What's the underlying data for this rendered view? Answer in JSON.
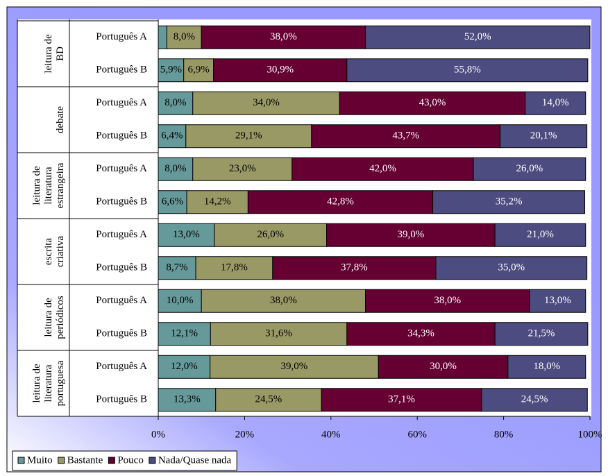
{
  "chart_data": {
    "type": "stacked_bar_horizontal",
    "groups": [
      {
        "label": [
          "leitura de",
          "BD"
        ]
      },
      {
        "label": [
          "debate"
        ]
      },
      {
        "label": [
          "leitura de",
          "literatura",
          "estrangeira"
        ]
      },
      {
        "label": [
          "escrita",
          "criativa"
        ]
      },
      {
        "label": [
          "leitura de",
          "periódicos"
        ]
      },
      {
        "label": [
          "leitura de",
          "literatura",
          "portuguesa"
        ]
      }
    ],
    "categories": [
      "Português A",
      "Português B",
      "Português A",
      "Português B",
      "Português A",
      "Português B",
      "Português A",
      "Português B",
      "Português A",
      "Português B",
      "Português A",
      "Português B"
    ],
    "series": [
      {
        "name": "Muito",
        "color": "#669999",
        "values": [
          2,
          5.9,
          8,
          6.4,
          8,
          6.6,
          13,
          8.7,
          10,
          12.1,
          12,
          13.3
        ],
        "value_labels": [
          null,
          "5,9%",
          "8,0%",
          "6,4%",
          "8,0%",
          "6,6%",
          "13,0%",
          "8,7%",
          "10,0%",
          "12,1%",
          "12,0%",
          "13,3%"
        ]
      },
      {
        "name": "Bastante",
        "color": "#999966",
        "values": [
          8,
          6.9,
          34,
          29.1,
          23,
          14.2,
          26,
          17.8,
          38,
          31.6,
          39,
          24.5
        ],
        "value_labels": [
          "8,0%",
          "6,9%",
          "34,0%",
          "29,1%",
          "23,0%",
          "14,2%",
          "26,0%",
          "17,8%",
          "38,0%",
          "31,6%",
          "39,0%",
          "24,5%"
        ]
      },
      {
        "name": "Pouco",
        "color": "#660033",
        "values": [
          38,
          30.9,
          43,
          43.7,
          42,
          42.8,
          39,
          37.8,
          38,
          34.3,
          30,
          37.1
        ],
        "value_labels": [
          "38,0%",
          "30,9%",
          "43,0%",
          "43,7%",
          "42,0%",
          "42,8%",
          "39,0%",
          "37,8%",
          "38,0%",
          "34,3%",
          "30,0%",
          "37,1%"
        ]
      },
      {
        "name": "Nada/Quase nada",
        "color": "#4c4c80",
        "values": [
          52,
          55.8,
          14,
          20.1,
          26,
          35.2,
          21,
          35,
          13,
          21.5,
          18,
          24.5
        ],
        "value_labels": [
          "52,0%",
          "55,8%",
          "14,0%",
          "20,1%",
          "26,0%",
          "35,2%",
          "21,0%",
          "35,0%",
          "13,0%",
          "21,5%",
          "18,0%",
          "24,5%"
        ]
      }
    ],
    "xlim": [
      0,
      100
    ],
    "xticks": [
      {
        "value": 0,
        "label": "0%"
      },
      {
        "value": 20,
        "label": "20%"
      },
      {
        "value": 40,
        "label": "40%"
      },
      {
        "value": 60,
        "label": "60%"
      },
      {
        "value": 80,
        "label": "80%"
      },
      {
        "value": 100,
        "label": "100%"
      }
    ],
    "legend": "bottom-left"
  }
}
